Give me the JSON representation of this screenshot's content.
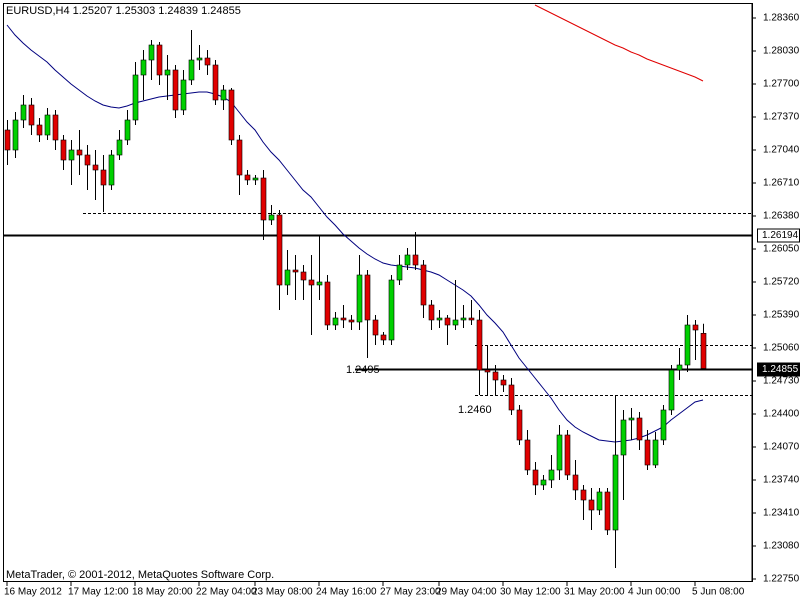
{
  "chart_data": {
    "type": "candlestick",
    "title": "EURUSD,H4  1.25207 1.25303 1.24839 1.24855",
    "footer": "MetaTrader, © 2001-2012, MetaQuotes Software Corp.",
    "up_color": "#00d000",
    "down_color": "#e00000",
    "wick_color": "#000000",
    "ylim": [
      1.2272,
      1.2854
    ],
    "yticks": [
      {
        "value": 1.2836,
        "label": "1.28360"
      },
      {
        "value": 1.2803,
        "label": "1.28030"
      },
      {
        "value": 1.277,
        "label": "1.27700"
      },
      {
        "value": 1.2737,
        "label": "1.27370"
      },
      {
        "value": 1.2704,
        "label": "1.27040"
      },
      {
        "value": 1.2671,
        "label": "1.26710"
      },
      {
        "value": 1.2638,
        "label": "1.26380"
      },
      {
        "value": 1.2605,
        "label": "1.26050"
      },
      {
        "value": 1.2572,
        "label": "1.25720"
      },
      {
        "value": 1.2539,
        "label": "1.25390"
      },
      {
        "value": 1.2506,
        "label": "1.25060"
      },
      {
        "value": 1.2473,
        "label": "1.24730"
      },
      {
        "value": 1.244,
        "label": "1.24400"
      },
      {
        "value": 1.2407,
        "label": "1.24070"
      },
      {
        "value": 1.2374,
        "label": "1.23740"
      },
      {
        "value": 1.2341,
        "label": "1.23410"
      },
      {
        "value": 1.2308,
        "label": "1.23080"
      },
      {
        "value": 1.2275,
        "label": "1.22750"
      }
    ],
    "categories": [
      "16 May 2012",
      null,
      null,
      null,
      null,
      null,
      null,
      null,
      "17 May 12:00",
      null,
      null,
      null,
      null,
      null,
      null,
      null,
      "18 May 20:00",
      null,
      null,
      null,
      null,
      null,
      null,
      null,
      "22 May 04:00",
      null,
      null,
      null,
      null,
      null,
      null,
      "23 May 08:00",
      null,
      null,
      null,
      null,
      null,
      null,
      null,
      "24 May 16:00",
      null,
      null,
      null,
      null,
      null,
      null,
      null,
      "27 May 23:00",
      null,
      null,
      null,
      null,
      null,
      null,
      "29 May 04:00",
      null,
      null,
      null,
      null,
      null,
      null,
      null,
      "30 May 12:00",
      null,
      null,
      null,
      null,
      null,
      null,
      null,
      "31 May 20:00",
      null,
      null,
      null,
      null,
      null,
      null,
      null,
      "4 Jun 00:00",
      null,
      null,
      null,
      null,
      null,
      null,
      null,
      "5 Jun 08:00",
      null
    ],
    "ohlc": [
      [
        1.2724,
        1.2734,
        1.2689,
        1.2704
      ],
      [
        1.2704,
        1.2742,
        1.2696,
        1.2734
      ],
      [
        1.2734,
        1.2759,
        1.2726,
        1.2749
      ],
      [
        1.2749,
        1.2756,
        1.2719,
        1.2729
      ],
      [
        1.2729,
        1.2736,
        1.2712,
        1.2719
      ],
      [
        1.2719,
        1.2746,
        1.2714,
        1.2739
      ],
      [
        1.2739,
        1.2744,
        1.2704,
        1.2714
      ],
      [
        1.2714,
        1.2719,
        1.2684,
        1.2694
      ],
      [
        1.2694,
        1.2714,
        1.2669,
        1.2704
      ],
      [
        1.2704,
        1.2724,
        1.2679,
        1.2699
      ],
      [
        1.2699,
        1.2709,
        1.2664,
        1.2689
      ],
      [
        1.2689,
        1.2704,
        1.2654,
        1.2684
      ],
      [
        1.2684,
        1.2699,
        1.2642,
        1.2669
      ],
      [
        1.2669,
        1.2704,
        1.2664,
        1.2699
      ],
      [
        1.2699,
        1.2724,
        1.2694,
        1.2714
      ],
      [
        1.2714,
        1.2744,
        1.2709,
        1.2734
      ],
      [
        1.2734,
        1.2792,
        1.2729,
        1.2779
      ],
      [
        1.2779,
        1.2804,
        1.2754,
        1.2794
      ],
      [
        1.2794,
        1.2814,
        1.2774,
        1.2809
      ],
      [
        1.2809,
        1.2812,
        1.2769,
        1.2779
      ],
      [
        1.2779,
        1.2799,
        1.2754,
        1.2784
      ],
      [
        1.2784,
        1.2789,
        1.2736,
        1.2744
      ],
      [
        1.2744,
        1.2784,
        1.2739,
        1.2774
      ],
      [
        1.2774,
        1.2824,
        1.2769,
        1.2794
      ],
      [
        1.2794,
        1.2809,
        1.2784,
        1.2796
      ],
      [
        1.2796,
        1.2804,
        1.2779,
        1.2789
      ],
      [
        1.2789,
        1.2794,
        1.2749,
        1.2754
      ],
      [
        1.2754,
        1.2769,
        1.2744,
        1.2764
      ],
      [
        1.2764,
        1.2766,
        1.2709,
        1.2714
      ],
      [
        1.2714,
        1.2719,
        1.2659,
        1.2679
      ],
      [
        1.2679,
        1.2684,
        1.2669,
        1.2674
      ],
      [
        1.2674,
        1.2679,
        1.2669,
        1.2676
      ],
      [
        1.2676,
        1.2684,
        1.2614,
        1.2634
      ],
      [
        1.2634,
        1.2649,
        1.2629,
        1.2639
      ],
      [
        1.2639,
        1.2644,
        1.2544,
        1.2569
      ],
      [
        1.2569,
        1.2604,
        1.2559,
        1.2584
      ],
      [
        1.2584,
        1.2599,
        1.2554,
        1.2582
      ],
      [
        1.2582,
        1.2589,
        1.2554,
        1.2574
      ],
      [
        1.2574,
        1.2599,
        1.2519,
        1.2569
      ],
      [
        1.2569,
        1.2619,
        1.2554,
        1.2572
      ],
      [
        1.2572,
        1.2579,
        1.2524,
        1.2529
      ],
      [
        1.2529,
        1.2542,
        1.2524,
        1.2536
      ],
      [
        1.2536,
        1.2549,
        1.2526,
        1.2534
      ],
      [
        1.2534,
        1.2539,
        1.2524,
        1.2532
      ],
      [
        1.2532,
        1.2599,
        1.2524,
        1.2579
      ],
      [
        1.2579,
        1.2584,
        1.2496,
        1.2534
      ],
      [
        1.2534,
        1.2539,
        1.2509,
        1.2519
      ],
      [
        1.2519,
        1.2522,
        1.2509,
        1.2514
      ],
      [
        1.2514,
        1.2579,
        1.2509,
        1.2574
      ],
      [
        1.2574,
        1.2599,
        1.2569,
        1.2589
      ],
      [
        1.2589,
        1.2606,
        1.2584,
        1.2599
      ],
      [
        1.2599,
        1.2622,
        1.2584,
        1.2589
      ],
      [
        1.2589,
        1.2594,
        1.2536,
        1.2549
      ],
      [
        1.2549,
        1.2554,
        1.2524,
        1.2534
      ],
      [
        1.2534,
        1.2544,
        1.2526,
        1.2536
      ],
      [
        1.2536,
        1.2539,
        1.2509,
        1.2529
      ],
      [
        1.2529,
        1.2574,
        1.2524,
        1.2534
      ],
      [
        1.2534,
        1.2549,
        1.2526,
        1.2536
      ],
      [
        1.2536,
        1.2554,
        1.2529,
        1.2534
      ],
      [
        1.2534,
        1.2544,
        1.2459,
        1.2484
      ],
      [
        1.2484,
        1.2509,
        1.2459,
        1.2482
      ],
      [
        1.2482,
        1.2489,
        1.2459,
        1.2474
      ],
      [
        1.2474,
        1.2479,
        1.2462,
        1.2469
      ],
      [
        1.2469,
        1.2476,
        1.2439,
        1.2444
      ],
      [
        1.2444,
        1.2449,
        1.2409,
        1.2414
      ],
      [
        1.2414,
        1.2424,
        1.2379,
        1.2384
      ],
      [
        1.2384,
        1.2392,
        1.2359,
        1.2369
      ],
      [
        1.2369,
        1.2379,
        1.2364,
        1.2374
      ],
      [
        1.2374,
        1.2399,
        1.2366,
        1.2384
      ],
      [
        1.2384,
        1.2429,
        1.2374,
        1.2419
      ],
      [
        1.2419,
        1.2424,
        1.2374,
        1.2379
      ],
      [
        1.2379,
        1.2394,
        1.2354,
        1.2364
      ],
      [
        1.2364,
        1.2369,
        1.2334,
        1.2354
      ],
      [
        1.2354,
        1.2366,
        1.2324,
        1.2344
      ],
      [
        1.2344,
        1.2366,
        1.2339,
        1.2362
      ],
      [
        1.2362,
        1.2366,
        1.2319,
        1.2324
      ],
      [
        1.2324,
        1.2459,
        1.2286,
        1.2399
      ],
      [
        1.2399,
        1.2444,
        1.2354,
        1.2434
      ],
      [
        1.2434,
        1.2446,
        1.2414,
        1.2436
      ],
      [
        1.2436,
        1.2442,
        1.2404,
        1.2414
      ],
      [
        1.2414,
        1.2424,
        1.2384,
        1.2389
      ],
      [
        1.2389,
        1.2422,
        1.2386,
        1.2414
      ],
      [
        1.2414,
        1.2449,
        1.2409,
        1.2444
      ],
      [
        1.2444,
        1.2489,
        1.2439,
        1.2484
      ],
      [
        1.2484,
        1.2506,
        1.2474,
        1.2489
      ],
      [
        1.2489,
        1.2539,
        1.2482,
        1.2529
      ],
      [
        1.2529,
        1.2534,
        1.2494,
        1.2524
      ],
      [
        1.25207,
        1.25303,
        1.24839,
        1.24855
      ]
    ],
    "series": [
      {
        "color": "#00007f",
        "values": [
          1.2829,
          1.2819,
          1.2811,
          1.2804,
          1.2798,
          1.2792,
          1.2784,
          1.2777,
          1.277,
          1.2764,
          1.2758,
          1.2753,
          1.2749,
          1.2747,
          1.2746,
          1.2748,
          1.2751,
          1.2753,
          1.2755,
          1.2757,
          1.2758,
          1.2759,
          1.276,
          1.2761,
          1.2762,
          1.2762,
          1.276,
          1.2757,
          1.2752,
          1.2742,
          1.2732,
          1.2724,
          1.2712,
          1.2702,
          1.2694,
          1.2684,
          1.2674,
          1.2664,
          1.2657,
          1.2647,
          1.2637,
          1.2629,
          1.262,
          1.2613,
          1.2606,
          1.26,
          1.2595,
          1.2591,
          1.2589,
          1.2588,
          1.2587,
          1.2586,
          1.2584,
          1.2582,
          1.2579,
          1.2574,
          1.2569,
          1.2564,
          1.2558,
          1.2549,
          1.2539,
          1.2531,
          1.2522,
          1.2509,
          1.2496,
          1.2486,
          1.2476,
          1.2466,
          1.2456,
          1.2444,
          1.2434,
          1.2427,
          1.2422,
          1.2418,
          1.2414,
          1.2413,
          1.2412,
          1.2413,
          1.2414,
          1.2416,
          1.2419,
          1.2423,
          1.2427,
          1.2434,
          1.244,
          1.2446,
          1.2452,
          1.2454
        ]
      },
      {
        "color": "#e00000",
        "values": [
          null,
          null,
          null,
          null,
          null,
          null,
          null,
          null,
          null,
          null,
          null,
          null,
          null,
          null,
          null,
          null,
          null,
          null,
          null,
          null,
          null,
          null,
          null,
          null,
          null,
          null,
          null,
          null,
          null,
          null,
          null,
          null,
          null,
          null,
          null,
          null,
          null,
          null,
          null,
          null,
          null,
          null,
          null,
          null,
          null,
          null,
          null,
          null,
          null,
          null,
          null,
          null,
          null,
          null,
          null,
          null,
          null,
          null,
          null,
          null,
          null,
          null,
          null,
          null,
          null,
          null,
          1.2849,
          1.2845,
          1.2841,
          1.2837,
          1.2833,
          1.2829,
          1.2825,
          1.2821,
          1.2817,
          1.2813,
          1.2809,
          1.2806,
          1.2802,
          1.2799,
          1.2795,
          1.2792,
          1.2789,
          1.2786,
          1.2783,
          1.278,
          1.2777,
          1.2773
        ]
      }
    ],
    "levels": [
      {
        "value": 1.26194,
        "label": "1.26194",
        "style": "solid",
        "start": 0,
        "tag": "outline"
      },
      {
        "value": 1.24855,
        "label": "1.24855",
        "style": "solid",
        "start": 44,
        "tag": "filled"
      },
      {
        "value": 1.2641,
        "style": "dashed",
        "start": 10
      },
      {
        "value": 1.2509,
        "style": "dashed",
        "start": 59
      },
      {
        "value": 1.2459,
        "style": "dashed",
        "start": 59
      }
    ],
    "annotations": [
      {
        "text": "1.2495",
        "x": 43,
        "y": 1.2484
      },
      {
        "text": "1.2460",
        "x": 57,
        "y": 1.2444
      }
    ]
  }
}
